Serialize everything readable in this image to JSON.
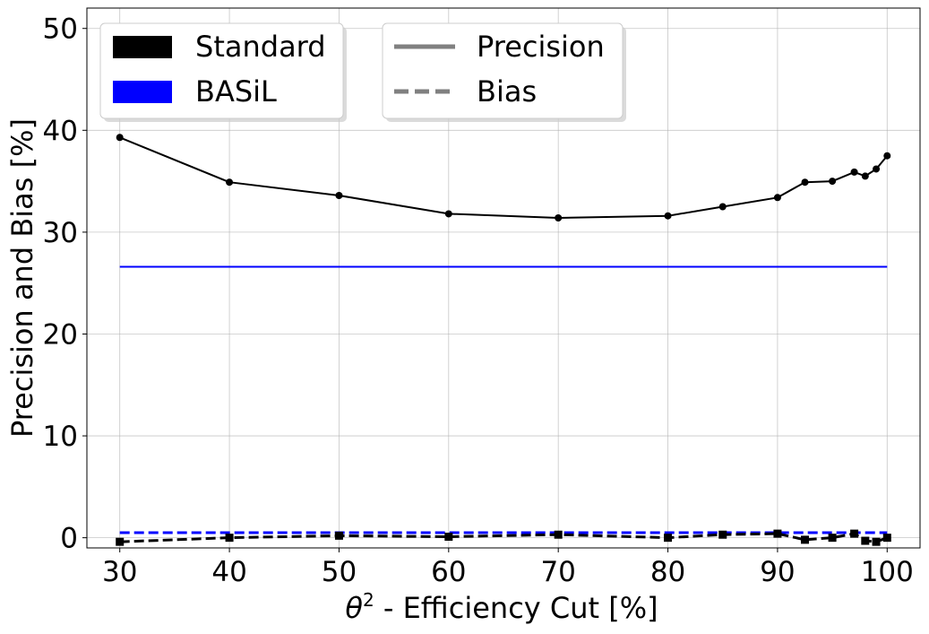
{
  "chart_data": {
    "type": "line",
    "xlabel_prefix": "θ",
    "xlabel_sup": "2",
    "xlabel_rest": " - Efficiency Cut [%]",
    "ylabel": "Precision and Bias [%]",
    "xlim": [
      27.0,
      103.0
    ],
    "ylim": [
      -1.0,
      52.0
    ],
    "xticks": [
      30,
      40,
      50,
      60,
      70,
      80,
      90,
      100
    ],
    "yticks": [
      0,
      10,
      20,
      30,
      40,
      50
    ],
    "grid": true,
    "legend_methods": {
      "placement": "top-left",
      "entries": [
        {
          "label": "Standard",
          "color": "#000000"
        },
        {
          "label": "BASiL",
          "color": "#0000ff"
        }
      ]
    },
    "legend_metrics": {
      "placement": "top-center",
      "entries": [
        {
          "label": "Precision",
          "color": "#808080",
          "style": "solid"
        },
        {
          "label": "Bias",
          "color": "#808080",
          "style": "dashed"
        }
      ]
    },
    "series": [
      {
        "name": "Standard Precision",
        "color": "#000000",
        "style": "solid",
        "marker": "circle",
        "x": [
          30,
          40,
          50,
          60,
          70,
          80,
          85,
          90,
          92.5,
          95,
          97,
          98,
          99,
          100
        ],
        "y": [
          39.3,
          34.9,
          33.6,
          31.8,
          31.4,
          31.6,
          32.5,
          33.4,
          34.9,
          35.0,
          35.9,
          35.5,
          36.2,
          37.5
        ]
      },
      {
        "name": "Standard Bias",
        "color": "#000000",
        "style": "dashed",
        "marker": "square",
        "x": [
          30,
          40,
          50,
          60,
          70,
          80,
          85,
          90,
          92.5,
          95,
          97,
          98,
          99,
          100
        ],
        "y": [
          -0.4,
          0.0,
          0.2,
          0.1,
          0.3,
          0.0,
          0.3,
          0.4,
          -0.2,
          0.0,
          0.4,
          -0.3,
          -0.4,
          0.0
        ]
      },
      {
        "name": "BASiL Precision",
        "color": "#0000ff",
        "style": "solid",
        "marker": "none",
        "x": [
          30,
          100
        ],
        "y": [
          26.6,
          26.6
        ]
      },
      {
        "name": "BASiL Bias",
        "color": "#0000ff",
        "style": "dashed",
        "marker": "none",
        "x": [
          30,
          100
        ],
        "y": [
          0.5,
          0.5
        ]
      }
    ]
  }
}
